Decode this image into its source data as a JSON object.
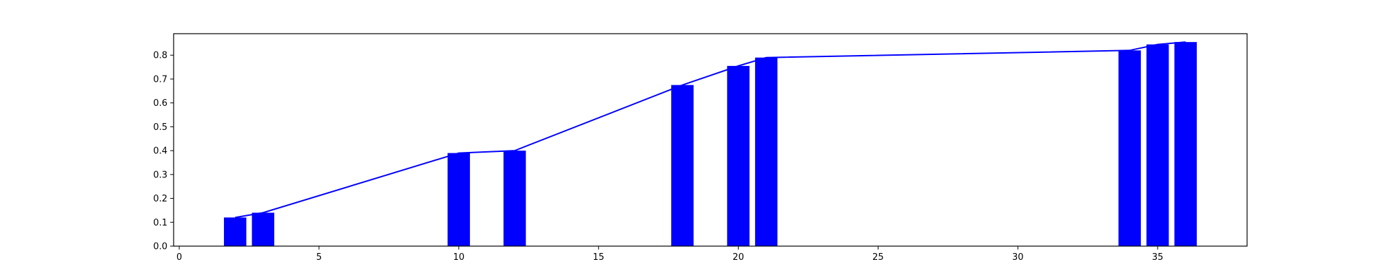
{
  "chart_data": {
    "type": "bar",
    "bars": {
      "x": [
        2,
        3,
        10,
        12,
        18,
        20,
        21,
        34,
        35,
        36
      ],
      "values": [
        0.12,
        0.14,
        0.39,
        0.4,
        0.675,
        0.755,
        0.79,
        0.82,
        0.845,
        0.855
      ],
      "width": 0.8,
      "color": "#0000ff"
    },
    "line": {
      "x": [
        2,
        3,
        10,
        12,
        18,
        20,
        21,
        34,
        35,
        36
      ],
      "values": [
        0.12,
        0.14,
        0.39,
        0.4,
        0.675,
        0.755,
        0.79,
        0.82,
        0.845,
        0.855
      ],
      "color": "#0000ff"
    },
    "xlim": [
      -0.2,
      38.2
    ],
    "ylim": [
      0,
      0.89
    ],
    "xticks": [
      0,
      5,
      10,
      15,
      20,
      25,
      30,
      35
    ],
    "xtick_labels": [
      "0",
      "5",
      "10",
      "15",
      "20",
      "25",
      "30",
      "35"
    ],
    "yticks": [
      0.0,
      0.1,
      0.2,
      0.3,
      0.4,
      0.5,
      0.6,
      0.7,
      0.8
    ],
    "ytick_labels": [
      "0.0",
      "0.1",
      "0.2",
      "0.3",
      "0.4",
      "0.5",
      "0.6",
      "0.7",
      "0.8"
    ],
    "grid": false,
    "title": "",
    "xlabel": "",
    "ylabel": ""
  }
}
